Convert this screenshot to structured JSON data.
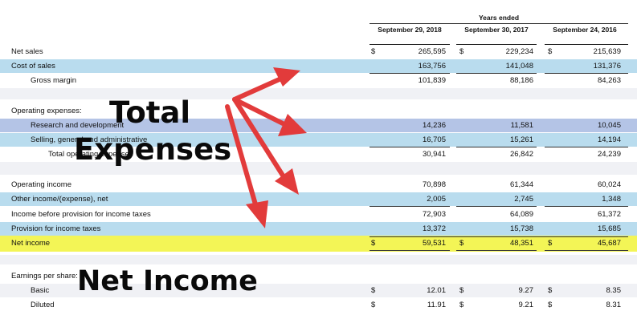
{
  "header": {
    "group": "Years ended",
    "col1": "September 29, 2018",
    "col2": "September 30, 2017",
    "col3": "September 24, 2016"
  },
  "rows": [
    {
      "label": "Net sales",
      "c1": "265,595",
      "c2": "229,234",
      "c3": "215,639",
      "currency": "$"
    },
    {
      "label": "Cost of sales",
      "c1": "163,756",
      "c2": "141,048",
      "c3": "131,376"
    },
    {
      "label": "Gross margin",
      "c1": "101,839",
      "c2": "88,186",
      "c3": "84,263"
    },
    {
      "label": "Operating expenses:"
    },
    {
      "label": "Research and development",
      "c1": "14,236",
      "c2": "11,581",
      "c3": "10,045"
    },
    {
      "label": "Selling, general and administrative",
      "c1": "16,705",
      "c2": "15,261",
      "c3": "14,194"
    },
    {
      "label": "Total operating expenses",
      "c1": "30,941",
      "c2": "26,842",
      "c3": "24,239"
    },
    {
      "label": "Operating income",
      "c1": "70,898",
      "c2": "61,344",
      "c3": "60,024"
    },
    {
      "label": "Other income/(expense), net",
      "c1": "2,005",
      "c2": "2,745",
      "c3": "1,348"
    },
    {
      "label": "Income before provision for income taxes",
      "c1": "72,903",
      "c2": "64,089",
      "c3": "61,372"
    },
    {
      "label": "Provision for income taxes",
      "c1": "13,372",
      "c2": "15,738",
      "c3": "15,685"
    },
    {
      "label": "Net income",
      "c1": "59,531",
      "c2": "48,351",
      "c3": "45,687",
      "currency": "$"
    },
    {
      "label": "Earnings per share:"
    },
    {
      "label": "Basic",
      "c1": "12.01",
      "c2": "9.27",
      "c3": "8.35",
      "currency": "$"
    },
    {
      "label": "Diluted",
      "c1": "11.91",
      "c2": "9.21",
      "c3": "8.31",
      "currency": "$"
    }
  ],
  "overlay": {
    "total_expenses_line1": "Total",
    "total_expenses_line2": "Expenses",
    "net_income": "Net Income"
  },
  "colors": {
    "blue_band": "#b9dcee",
    "purple_band": "#b4c4e6",
    "highlight_yellow": "#f3f556",
    "arrow_red": "#e23b3b"
  }
}
